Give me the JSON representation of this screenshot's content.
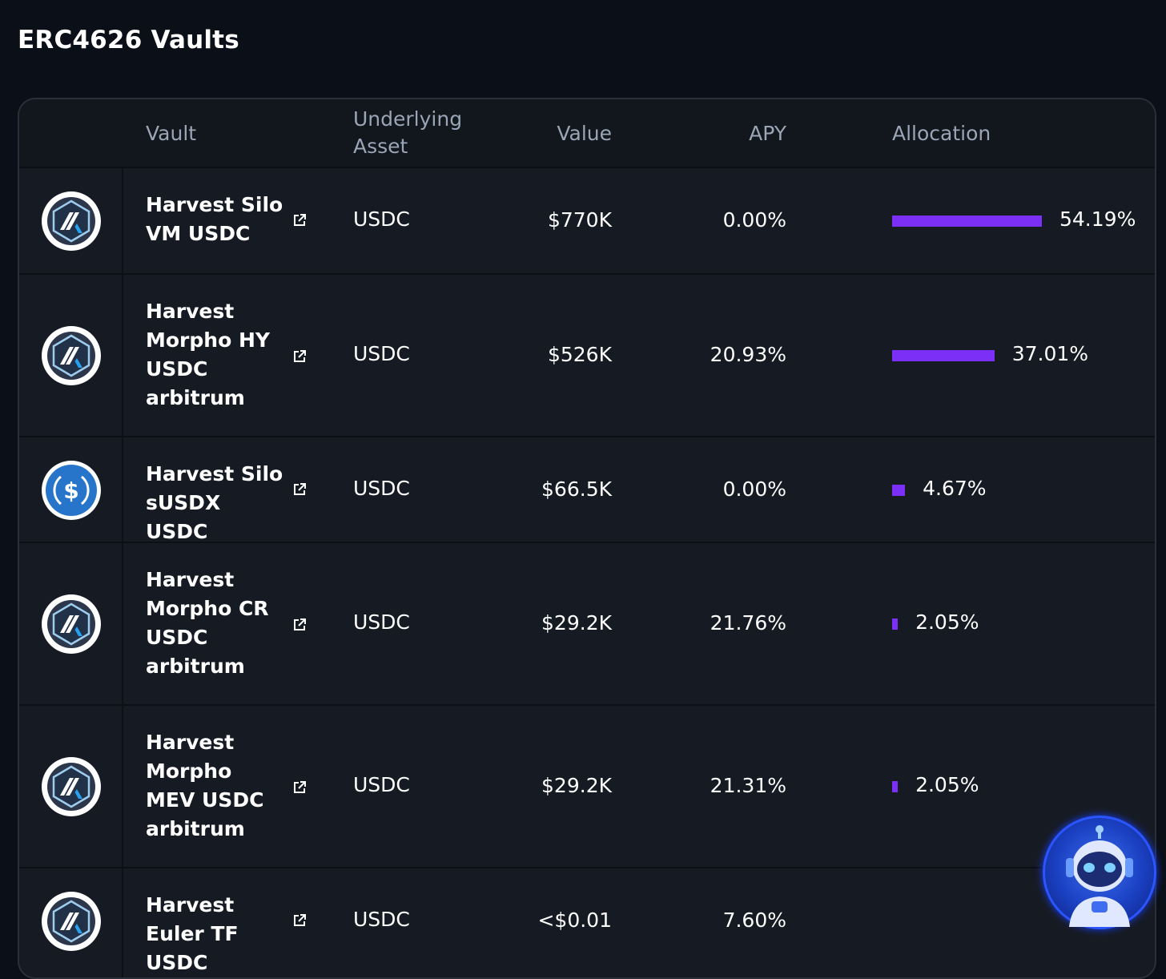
{
  "page": {
    "title": "ERC4626 Vaults"
  },
  "columns": {
    "vault": "Vault",
    "underlying": "Underlying Asset",
    "value": "Value",
    "apy": "APY",
    "allocation": "Allocation"
  },
  "rows": [
    {
      "logo": "arbitrum-icon",
      "name": "Harvest Silo VM USDC",
      "asset": "USDC",
      "value": "$770K",
      "apy": "0.00%",
      "allocation": "54.19%",
      "allocation_value": 54.19
    },
    {
      "logo": "arbitrum-icon",
      "name": "Harvest Morpho HY USDC arbitrum",
      "asset": "USDC",
      "value": "$526K",
      "apy": "20.93%",
      "allocation": "37.01%",
      "allocation_value": 37.01
    },
    {
      "logo": "usdc-icon",
      "name": "Harvest Silo sUSDX USDC",
      "asset": "USDC",
      "value": "$66.5K",
      "apy": "0.00%",
      "allocation": "4.67%",
      "allocation_value": 4.67
    },
    {
      "logo": "arbitrum-icon",
      "name": "Harvest Morpho CR USDC arbitrum",
      "asset": "USDC",
      "value": "$29.2K",
      "apy": "21.76%",
      "allocation": "2.05%",
      "allocation_value": 2.05
    },
    {
      "logo": "arbitrum-icon",
      "name": "Harvest Morpho MEV USDC arbitrum",
      "asset": "USDC",
      "value": "$29.2K",
      "apy": "21.31%",
      "allocation": "2.05%",
      "allocation_value": 2.05
    },
    {
      "logo": "arbitrum-icon",
      "name": "Harvest Euler TF USDC",
      "asset": "USDC",
      "value": "<$0.01",
      "apy": "7.60%",
      "allocation": "",
      "allocation_value": 0
    }
  ],
  "colors": {
    "accent": "#7b2ff7",
    "background": "#0b0f17",
    "card": "#161b23"
  },
  "assistant": {
    "icon": "robot-avatar-icon"
  }
}
